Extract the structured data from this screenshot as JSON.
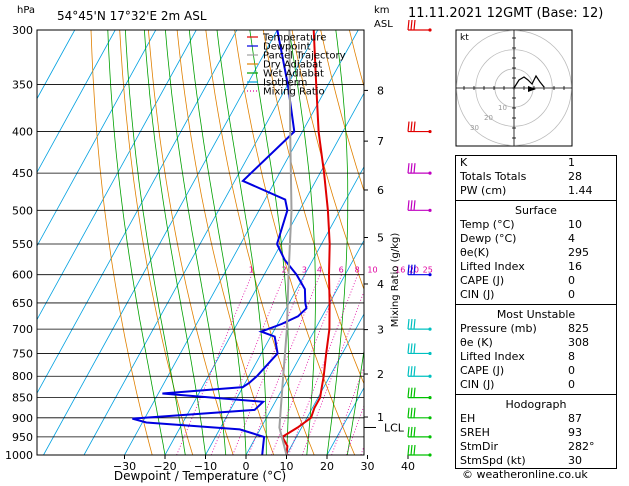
{
  "header": {
    "hpa_label": "hPa",
    "location": "54°45'N  17°32'E  2m  ASL",
    "km_label": "km",
    "asl_label": "ASL",
    "date": "11.11.2021  12GMT  (Base: 12)",
    "credit": "© weatheronline.co.uk"
  },
  "legend": [
    {
      "label": "Temperature",
      "color": "#e00000",
      "dash": ""
    },
    {
      "label": "Dewpoint",
      "color": "#0000e0",
      "dash": ""
    },
    {
      "label": "Parcel Trajectory",
      "color": "#a0a0a0",
      "dash": ""
    },
    {
      "label": "Dry Adiabat",
      "color": "#e08000",
      "dash": ""
    },
    {
      "label": "Wet Adiabat",
      "color": "#00a000",
      "dash": ""
    },
    {
      "label": "Isotherm",
      "color": "#00a0e0",
      "dash": ""
    },
    {
      "label": "Mixing Ratio",
      "color": "#e000a0",
      "dash": "1,2"
    }
  ],
  "chart_data": {
    "type": "line",
    "title": "Skew-T log-P diagram",
    "xlabel": "Dewpoint / Temperature (°C)",
    "ylabel": "hPa",
    "ylabel_right": "Mixing Ratio (g/kg)",
    "xlim": [
      -35,
      40
    ],
    "ylim": [
      1000,
      300
    ],
    "pressure_ticks": [
      300,
      350,
      400,
      450,
      500,
      550,
      600,
      650,
      700,
      750,
      800,
      850,
      900,
      950,
      1000
    ],
    "pressure_tick_labels": [
      "300",
      "350",
      "400",
      "450",
      "500",
      "550",
      "600",
      "650",
      "700",
      "750",
      "800",
      "850",
      "900",
      "950",
      "1000"
    ],
    "temp_ticks": [
      -30,
      -20,
      -10,
      0,
      10,
      20,
      30,
      40
    ],
    "temp_tick_labels": [
      "−30",
      "−20",
      "−10",
      "0",
      "10",
      "20",
      "30",
      "40"
    ],
    "km_ticks": [
      {
        "label": "1",
        "p": 898
      },
      {
        "label": "2",
        "p": 795
      },
      {
        "label": "3",
        "p": 701
      },
      {
        "label": "4",
        "p": 616
      },
      {
        "label": "5",
        "p": 540
      },
      {
        "label": "6",
        "p": 472
      },
      {
        "label": "7",
        "p": 411
      },
      {
        "label": "8",
        "p": 356
      }
    ],
    "lcl": {
      "label": "LCL",
      "p": 925
    },
    "mixing_ratio_labels": [
      "1",
      "2",
      "3",
      "4",
      "6",
      "8",
      "10",
      "16",
      "20",
      "25"
    ],
    "mixing_ratio_values": [
      1,
      2,
      3,
      4,
      6,
      8,
      10,
      16,
      20,
      25
    ],
    "series": [
      {
        "name": "Temperature",
        "points": [
          [
            1000,
            10
          ],
          [
            975,
            9
          ],
          [
            950,
            6.5
          ],
          [
            925,
            9
          ],
          [
            900,
            11
          ],
          [
            875,
            10.5
          ],
          [
            850,
            10.5
          ],
          [
            825,
            9.5
          ],
          [
            800,
            8.5
          ],
          [
            750,
            6
          ],
          [
            700,
            3.5
          ],
          [
            650,
            0
          ],
          [
            600,
            -4
          ],
          [
            550,
            -8
          ],
          [
            500,
            -13
          ],
          [
            450,
            -19
          ],
          [
            400,
            -26
          ],
          [
            350,
            -33
          ],
          [
            300,
            -41
          ]
        ]
      },
      {
        "name": "Dewpoint",
        "points": [
          [
            1000,
            4
          ],
          [
            975,
            3
          ],
          [
            950,
            2
          ],
          [
            930,
            -5
          ],
          [
            912,
            -29
          ],
          [
            902,
            -33
          ],
          [
            880,
            -4
          ],
          [
            860,
            -3
          ],
          [
            840,
            -29
          ],
          [
            825,
            -10
          ],
          [
            815,
            -9
          ],
          [
            800,
            -8
          ],
          [
            750,
            -6
          ],
          [
            715,
            -9
          ],
          [
            705,
            -13
          ],
          [
            690,
            -9
          ],
          [
            675,
            -6
          ],
          [
            660,
            -5
          ],
          [
            650,
            -6
          ],
          [
            625,
            -8
          ],
          [
            600,
            -12
          ],
          [
            575,
            -17
          ],
          [
            550,
            -21
          ],
          [
            500,
            -23
          ],
          [
            485,
            -25
          ],
          [
            460,
            -38
          ],
          [
            400,
            -32
          ],
          [
            350,
            -40
          ],
          [
            300,
            -50
          ]
        ]
      },
      {
        "name": "Parcel Trajectory",
        "points": [
          [
            1000,
            10
          ],
          [
            925,
            4.5
          ],
          [
            850,
            1
          ],
          [
            800,
            -1.5
          ],
          [
            700,
            -7
          ],
          [
            600,
            -14
          ],
          [
            500,
            -22
          ],
          [
            400,
            -33
          ],
          [
            300,
            -47
          ]
        ]
      }
    ],
    "wind_barbs": [
      {
        "p": 300,
        "color": "#e00000"
      },
      {
        "p": 400,
        "color": "#e00000"
      },
      {
        "p": 450,
        "color": "#c000c0"
      },
      {
        "p": 500,
        "color": "#c000c0"
      },
      {
        "p": 600,
        "color": "#0000e0"
      },
      {
        "p": 700,
        "color": "#00c0c0"
      },
      {
        "p": 750,
        "color": "#00c0c0"
      },
      {
        "p": 800,
        "color": "#00c0c0"
      },
      {
        "p": 850,
        "color": "#00c000"
      },
      {
        "p": 900,
        "color": "#00c000"
      },
      {
        "p": 950,
        "color": "#00c000"
      },
      {
        "p": 1000,
        "color": "#00c000"
      }
    ]
  },
  "hodograph": {
    "label": "kt",
    "ring_labels": [
      "10",
      "20",
      "30"
    ]
  },
  "indices": {
    "top": [
      {
        "label": "K",
        "value": "1"
      },
      {
        "label": "Totals Totals",
        "value": "28"
      },
      {
        "label": "PW (cm)",
        "value": "1.44"
      }
    ],
    "surface": {
      "title": "Surface",
      "rows": [
        {
          "label": "Temp (°C)",
          "value": "10"
        },
        {
          "label": "Dewp (°C)",
          "value": "4"
        },
        {
          "label": "θe(K)",
          "value": "295"
        },
        {
          "label": "Lifted Index",
          "value": "16"
        },
        {
          "label": "CAPE (J)",
          "value": "0"
        },
        {
          "label": "CIN (J)",
          "value": "0"
        }
      ]
    },
    "unstable": {
      "title": "Most Unstable",
      "rows": [
        {
          "label": "Pressure (mb)",
          "value": "825"
        },
        {
          "label": "θe (K)",
          "value": "308"
        },
        {
          "label": "Lifted Index",
          "value": "8"
        },
        {
          "label": "CAPE (J)",
          "value": "0"
        },
        {
          "label": "CIN (J)",
          "value": "0"
        }
      ]
    },
    "hodo": {
      "title": "Hodograph",
      "rows": [
        {
          "label": "EH",
          "value": "87"
        },
        {
          "label": "SREH",
          "value": "93"
        },
        {
          "label": "StmDir",
          "value": "282°"
        },
        {
          "label": "StmSpd (kt)",
          "value": "30"
        }
      ]
    }
  }
}
